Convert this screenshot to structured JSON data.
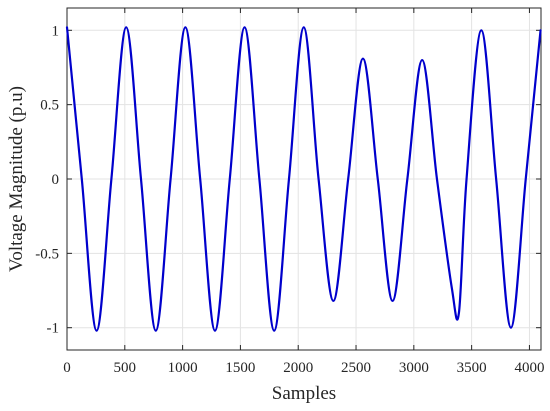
{
  "chart_data": {
    "type": "line",
    "title": "",
    "xlabel": "Samples",
    "ylabel": "Voltage Magnitude (p.u)",
    "xlim": [
      0,
      4100
    ],
    "ylim": [
      -1.15,
      1.15
    ],
    "x_ticks": [
      0,
      500,
      1000,
      1500,
      2000,
      2500,
      3000,
      3500,
      4000
    ],
    "x_tick_labels": [
      "0",
      "500",
      "1000",
      "1500",
      "2000",
      "2500",
      "3000",
      "3500",
      "4000"
    ],
    "y_ticks": [
      -1,
      -0.5,
      0,
      0.5,
      1
    ],
    "y_tick_labels": [
      "-1",
      "-0.5",
      "0",
      "0.5",
      "1"
    ],
    "grid": true,
    "legend": "none",
    "series": [
      {
        "color": "#0000cc",
        "x": [
          0,
          128,
          256,
          384,
          512,
          640,
          768,
          896,
          1024,
          1152,
          1280,
          1408,
          1536,
          1664,
          1792,
          1920,
          2048,
          2176,
          2304,
          2432,
          2560,
          2688,
          2816,
          2944,
          3072,
          3200,
          3328,
          3390,
          3456,
          3584,
          3712,
          3840,
          3968,
          4096
        ],
        "y": [
          1.02,
          0,
          -1.02,
          0,
          1.02,
          0,
          -1.02,
          0,
          1.02,
          0,
          -1.02,
          0,
          1.02,
          0,
          -1.02,
          0,
          1.02,
          0,
          -0.82,
          0,
          0.81,
          0,
          -0.82,
          0,
          0.8,
          0,
          -0.73,
          -0.9,
          0,
          1.0,
          0,
          -1.0,
          0,
          1.0
        ]
      }
    ]
  }
}
